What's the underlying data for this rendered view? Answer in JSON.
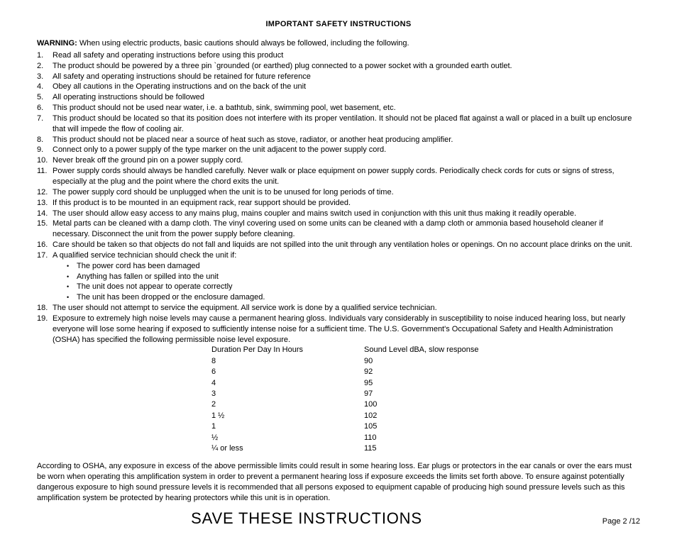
{
  "doc": {
    "title": "IMPORTANT SAFETY INSTRUCTIONS",
    "warning_label": "WARNING:",
    "warning_text": " When using electric products, basic cautions should always be followed, including the  following.",
    "items": [
      [
        "1.",
        "Read all safety and operating instructions before using this product"
      ],
      [
        "2.",
        "The product should be powered by a three pin `grounded (or earthed) plug connected to a power socket with a grounded earth outlet."
      ],
      [
        "3.",
        "All safety and operating instructions should be retained for future reference"
      ],
      [
        "4.",
        "Obey all cautions in the Operating instructions and on the back of the unit"
      ],
      [
        "5.",
        "All operating instructions should be followed"
      ],
      [
        "6.",
        "This product should not be used near water, i.e. a bathtub, sink, swimming pool, wet basement, etc."
      ],
      [
        "7.",
        "This product should be located so that its position does not interfere with its proper ventilation. It should not be placed flat against a wall or placed in a built up enclosure that will impede the flow of cooling air."
      ],
      [
        "8.",
        "This product should not be placed near a source of heat such as stove, radiator, or another heat producing  amplifier."
      ],
      [
        "9.",
        "Connect only to a power supply of the type marker on the unit adjacent to the power supply cord."
      ],
      [
        "10.",
        "Never break off the ground pin on a power supply cord."
      ],
      [
        "11.",
        "Power supply cords should always be handled carefully.  Never walk or place equipment on power supply cords. Periodically check cords for cuts or signs of stress, especially at the plug and the point where the chord exits the unit."
      ],
      [
        "12.",
        "The power supply cord should be unplugged when the unit is to be unused for long periods of time."
      ],
      [
        "13.",
        "If this product is to be mounted in an equipment rack, rear support should be provided."
      ],
      [
        "14.",
        "The user should allow easy access to any mains plug, mains coupler and mains switch used in conjunction with this unit thus making it readily operable."
      ],
      [
        "15.",
        "Metal parts can be cleaned with a damp cloth.  The vinyl covering used on some units can be cleaned with a damp cloth or ammonia based household cleaner if necessary.  Disconnect the unit from the power supply before cleaning."
      ],
      [
        "16.",
        "Care should be taken so that objects do not fall and liquids are not spilled into the unit through any ventilation holes or openings.  On no account place drinks on the unit."
      ],
      [
        "17.",
        "A qualified service technician should check the unit if:"
      ]
    ],
    "sublist": [
      "The power cord has been damaged",
      "Anything has fallen or spilled into the unit",
      "The unit does not appear to operate correctly",
      "The unit has been dropped or the enclosure damaged."
    ],
    "items2": [
      [
        "18.",
        "The user should not attempt to service the equipment.  All service work is done by a qualified service technician."
      ],
      [
        "19.",
        "Exposure to extremely high noise levels may cause a permanent hearing gloss.  Individuals vary considerably in susceptibility to noise induced hearing loss, but nearly everyone will lose some hearing if exposed to sufficiently intense noise for a sufficient time.  The U.S. Government's Occupational Safety and Health Administration (OSHA) has specified the following permissible noise level exposure."
      ]
    ],
    "table": {
      "header": [
        "Duration Per Day In Hours",
        "Sound Level dBA, slow response"
      ],
      "rows": [
        [
          "8",
          "90"
        ],
        [
          "6",
          "92"
        ],
        [
          "4",
          "95"
        ],
        [
          "3",
          "97"
        ],
        [
          "2",
          "100"
        ],
        [
          "1 ½",
          "102"
        ],
        [
          "1",
          "105"
        ],
        [
          "½",
          "110"
        ],
        [
          "¼ or less",
          "115"
        ]
      ]
    },
    "closing": "According to OSHA, any exposure in excess of the above permissible limits could result in some hearing loss.  Ear plugs or protectors in the ear canals or over the ears must be worn when operating this amplification system in order to prevent a permanent hearing loss if exposure exceeds the limits set forth above.  To ensure against potentially dangerous exposure to high sound pressure levels it is recommended that all persons exposed to equipment capable of producing high sound pressure levels such as this amplification system be protected by hearing protectors while this unit is in operation.",
    "big_footer": "SAVE THESE INSTRUCTIONS",
    "page_label": "Page 2 /12"
  }
}
